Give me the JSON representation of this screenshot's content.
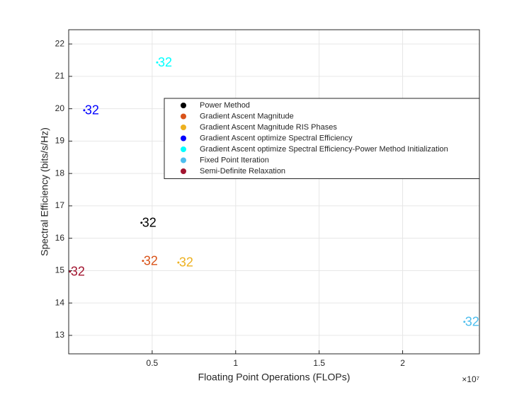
{
  "chart_data": {
    "type": "scatter",
    "xlabel": "Floating Point Operations (FLOPs)",
    "ylabel": "Spectral Efficiency (bits/s/Hz)",
    "x_exponent_label": "×10⁷",
    "xlim": [
      0,
      24600000
    ],
    "ylim": [
      12.43,
      22.44
    ],
    "xticks": [
      {
        "value": 5000000,
        "label": "0.5"
      },
      {
        "value": 10000000,
        "label": "1"
      },
      {
        "value": 15000000,
        "label": "1.5"
      },
      {
        "value": 20000000,
        "label": "2"
      }
    ],
    "yticks": [
      13,
      14,
      15,
      16,
      17,
      18,
      19,
      20,
      21,
      22
    ],
    "grid": true,
    "legend": "upper right",
    "series": [
      {
        "name": "Power Method",
        "color": "#000000",
        "x": [
          4360000
        ],
        "values": [
          16.48
        ],
        "labels": [
          "32"
        ]
      },
      {
        "name": "Gradient Ascent Magnitude",
        "color": "#D95319",
        "x": [
          4450000
        ],
        "values": [
          15.3
        ],
        "labels": [
          "32"
        ]
      },
      {
        "name": "Gradient Ascent Magnitude RIS Phases",
        "color": "#EDB120",
        "x": [
          6570000
        ],
        "values": [
          15.25
        ],
        "labels": [
          "32"
        ]
      },
      {
        "name": "Gradient Ascent optimize Spectral Efficiency",
        "color": "#0000FF",
        "x": [
          930000
        ],
        "values": [
          19.95
        ],
        "labels": [
          "32"
        ]
      },
      {
        "name": "Gradient Ascent optimize Spectral Efficiency-Power Method Initialization",
        "color": "#00FFFF",
        "x": [
          5300000
        ],
        "values": [
          21.43
        ],
        "labels": [
          "32"
        ]
      },
      {
        "name": "Fixed Point Iteration",
        "color": "#4DBEEE",
        "x": [
          23700000
        ],
        "values": [
          13.42
        ],
        "labels": [
          "32"
        ]
      },
      {
        "name": "Semi-Definite Relaxation",
        "color": "#A2142F",
        "x": [
          80000
        ],
        "values": [
          14.97
        ],
        "labels": [
          "32"
        ]
      }
    ]
  }
}
